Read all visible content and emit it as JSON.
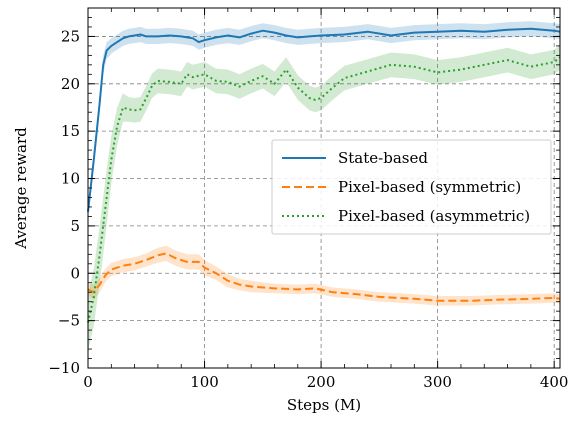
{
  "chart_data": {
    "type": "line",
    "xlabel": "Steps (M)",
    "ylabel": "Average reward",
    "xlim": [
      0,
      405
    ],
    "ylim": [
      -10,
      28
    ],
    "xticks": [
      0,
      100,
      200,
      300,
      400
    ],
    "yticks": [
      -10,
      -5,
      0,
      5,
      10,
      15,
      20,
      25
    ],
    "grid": true,
    "legend_position": "center-right",
    "series": [
      {
        "name": "State-based",
        "color": "#1f77b4",
        "style": "solid",
        "x": [
          0,
          5,
          10,
          13,
          16,
          20,
          25,
          30,
          35,
          40,
          45,
          50,
          60,
          70,
          80,
          90,
          95,
          100,
          110,
          120,
          130,
          140,
          150,
          160,
          170,
          180,
          190,
          200,
          220,
          240,
          260,
          280,
          300,
          320,
          340,
          360,
          380,
          400,
          405
        ],
        "y": [
          6.5,
          12,
          18,
          22,
          23.5,
          24,
          24.4,
          24.8,
          25,
          25.1,
          25.2,
          25.0,
          25.0,
          25.1,
          25.0,
          24.8,
          24.4,
          24.6,
          24.9,
          25.1,
          24.9,
          25.3,
          25.6,
          25.4,
          25.1,
          24.9,
          25.0,
          25.1,
          25.2,
          25.5,
          25.1,
          25.4,
          25.5,
          25.6,
          25.5,
          25.7,
          25.8,
          25.6,
          25.5
        ],
        "band": [
          0.6,
          1.0,
          1.0,
          1.0,
          0.9,
          0.8,
          0.8,
          0.8,
          0.8,
          0.8,
          0.8,
          0.8,
          0.8,
          0.8,
          0.8,
          0.8,
          0.8,
          0.8,
          0.8,
          0.8,
          0.8,
          0.8,
          0.8,
          0.8,
          0.8,
          0.8,
          0.8,
          0.8,
          0.8,
          0.8,
          0.8,
          0.8,
          0.8,
          0.8,
          0.8,
          0.8,
          0.8,
          0.8,
          0.8
        ]
      },
      {
        "name": "Pixel-based (symmetric)",
        "color": "#ff7f0e",
        "style": "dashed",
        "x": [
          0,
          5,
          10,
          15,
          20,
          30,
          40,
          50,
          60,
          67,
          75,
          85,
          95,
          100,
          110,
          120,
          130,
          140,
          160,
          180,
          195,
          210,
          230,
          250,
          280,
          300,
          330,
          350,
          380,
          400,
          405
        ],
        "y": [
          -1.7,
          -2.0,
          -1.2,
          -0.2,
          0.4,
          0.8,
          1.0,
          1.4,
          1.9,
          2.1,
          1.6,
          1.2,
          1.2,
          0.6,
          0.0,
          -0.8,
          -1.2,
          -1.4,
          -1.6,
          -1.7,
          -1.6,
          -2.0,
          -2.2,
          -2.5,
          -2.7,
          -2.9,
          -2.9,
          -2.8,
          -2.7,
          -2.6,
          -2.7
        ],
        "band": [
          0.6,
          0.8,
          0.8,
          0.7,
          0.7,
          0.7,
          0.7,
          0.7,
          0.8,
          0.8,
          0.8,
          0.8,
          0.8,
          0.8,
          0.7,
          0.7,
          0.6,
          0.6,
          0.5,
          0.5,
          0.5,
          0.5,
          0.5,
          0.5,
          0.5,
          0.5,
          0.5,
          0.5,
          0.5,
          0.5,
          0.5
        ]
      },
      {
        "name": "Pixel-based (asymmetric)",
        "color": "#2ca02c",
        "style": "dotted",
        "x": [
          0,
          5,
          10,
          15,
          20,
          25,
          30,
          35,
          40,
          45,
          50,
          55,
          60,
          70,
          80,
          85,
          90,
          100,
          110,
          120,
          130,
          140,
          150,
          160,
          170,
          180,
          190,
          195,
          200,
          210,
          220,
          240,
          260,
          280,
          300,
          320,
          340,
          360,
          380,
          400,
          405
        ],
        "y": [
          -5.2,
          -2.5,
          2,
          7,
          12,
          15.5,
          17.5,
          17.3,
          17.2,
          17.3,
          18.5,
          19.8,
          20.3,
          20.2,
          20.0,
          21.0,
          20.7,
          21.0,
          20.3,
          20.2,
          19.7,
          20.3,
          20.8,
          20.0,
          21.5,
          19.6,
          18.5,
          18.3,
          18.5,
          19.6,
          20.6,
          21.3,
          22.0,
          21.8,
          21.2,
          21.5,
          22.0,
          22.5,
          21.8,
          22.3,
          22.8
        ],
        "band": [
          3.0,
          3.0,
          3.0,
          3.0,
          2.5,
          2.0,
          1.5,
          1.3,
          1.3,
          1.3,
          1.3,
          1.3,
          1.3,
          1.3,
          1.3,
          1.3,
          1.3,
          1.3,
          1.3,
          1.3,
          1.3,
          1.3,
          1.3,
          1.3,
          1.3,
          1.3,
          1.3,
          1.3,
          1.3,
          1.3,
          1.3,
          1.3,
          1.3,
          1.3,
          1.3,
          1.3,
          1.3,
          1.3,
          1.3,
          1.3,
          1.3
        ]
      }
    ]
  }
}
